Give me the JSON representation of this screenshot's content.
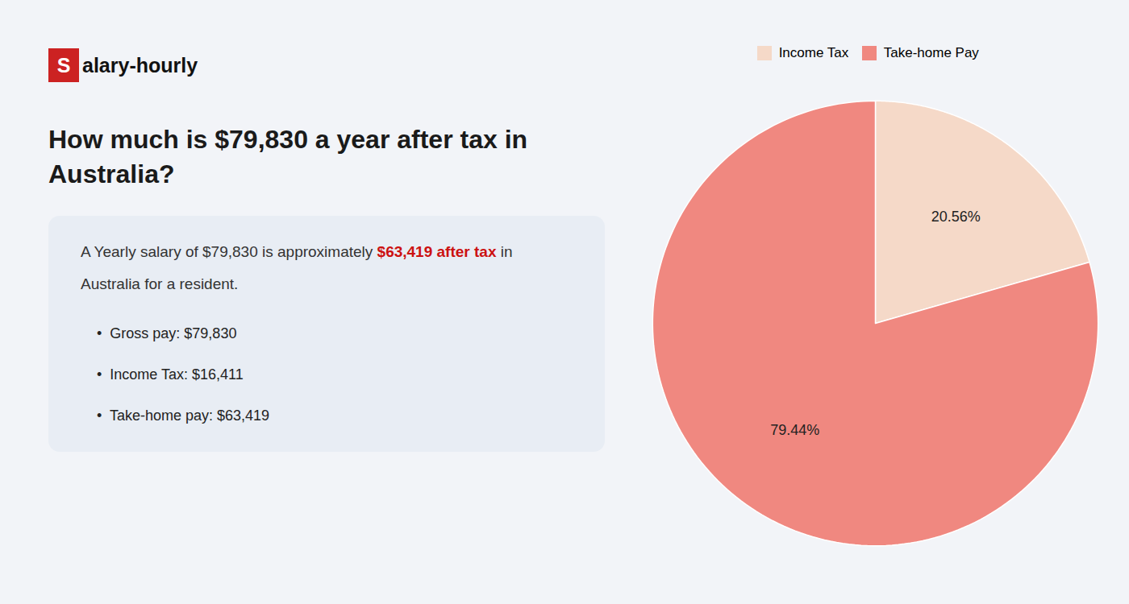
{
  "chart_data": {
    "type": "pie",
    "title": "How much is $79,830 a year after tax in\nAustralia?",
    "annotations": [
      [
        {
          "text": "S",
          "color": "#cc2222"
        },
        {
          "text": "alary-hourly"
        }
      ],
      [
        {
          "text": "A Yearly salary of $79,830 is approximately "
        },
        {
          "text": "$63,419 after tax",
          "color": "#cc1111"
        },
        {
          "text": " in"
        }
      ],
      [
        {
          "text": "Australia for a resident."
        }
      ],
      [
        {
          "text": "•  Gross pay: $79,830"
        }
      ],
      [
        {
          "text": "•  Income Tax: $16,411"
        }
      ],
      [
        {
          "text": "•  Take-home pay: $63,419"
        }
      ]
    ],
    "categories": [
      "Income Tax",
      "Take-home Pay"
    ],
    "values": [
      20.56,
      79.44
    ],
    "value_labels": [
      "20.56%",
      "79.44%"
    ],
    "colors": [
      "#f5d9c8",
      "#f08880"
    ],
    "data_labels": true,
    "legend": "top"
  }
}
